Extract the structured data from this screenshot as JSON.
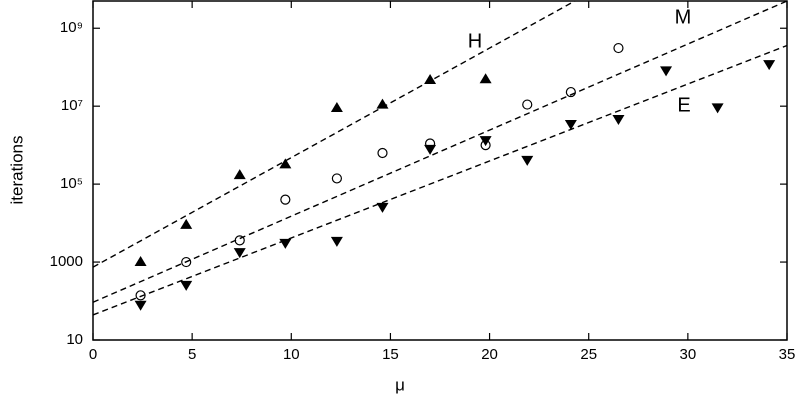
{
  "chart_data": {
    "type": "scatter",
    "x_label": "μ",
    "y_label": "iterations",
    "log_y": true,
    "xlim": [
      0,
      35
    ],
    "xticks": [
      0,
      5,
      10,
      15,
      20,
      25,
      30,
      35
    ],
    "ylim": [
      10,
      5000000000
    ],
    "yticks": [
      10,
      1000,
      {
        "value": 100000,
        "label": "10⁵"
      },
      {
        "value": 10000000,
        "label": "10⁷"
      },
      {
        "value": 1000000000,
        "label": "10⁹"
      }
    ],
    "series": [
      {
        "name": "H",
        "marker": "triangle-up",
        "color": "#000000",
        "x": [
          2.4,
          4.7,
          7.4,
          9.7,
          12.3,
          14.6,
          17.0,
          19.8
        ],
        "values": [
          1000,
          9000,
          170000,
          320000,
          9000000,
          11000000,
          47000000,
          49000000
        ],
        "fit": {
          "x": [
            0,
            24.3
          ],
          "values": [
            740,
            5000000000
          ]
        }
      },
      {
        "name": "M",
        "marker": "circle-open",
        "color": "#000000",
        "x": [
          2.4,
          4.7,
          7.4,
          9.7,
          12.3,
          14.6,
          17.0,
          19.8,
          21.9,
          24.1,
          26.5
        ],
        "values": [
          140,
          1000,
          3600,
          40000,
          140000,
          630000,
          1100000,
          1000000,
          11000000,
          23000000,
          310000000
        ],
        "fit": {
          "x": [
            0,
            35
          ],
          "values": [
            93,
            5000000000
          ]
        }
      },
      {
        "name": "E",
        "marker": "triangle-down",
        "color": "#000000",
        "x": [
          2.4,
          4.7,
          7.4,
          9.7,
          12.3,
          14.6,
          17.0,
          19.8,
          21.9,
          24.1,
          26.5,
          28.9,
          31.5,
          34.1
        ],
        "values": [
          80,
          260,
          1800,
          3100,
          3500,
          26000,
          800000,
          1350000,
          420000,
          3500000,
          4700000,
          83000000,
          9300000,
          120000000
        ],
        "fit": {
          "x": [
            0,
            35
          ],
          "values": [
            44,
            360000000
          ]
        }
      }
    ]
  }
}
